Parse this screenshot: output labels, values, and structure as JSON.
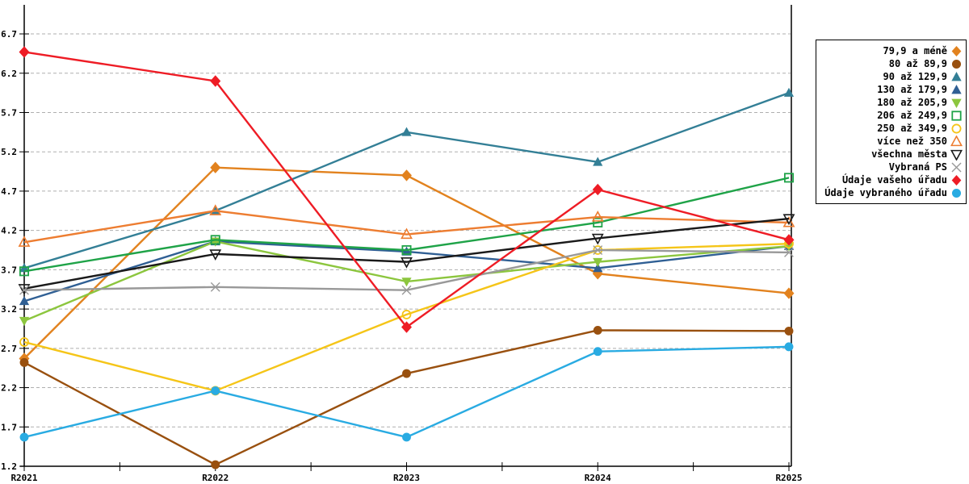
{
  "chart_data": {
    "type": "line",
    "title": "",
    "xlabel": "",
    "ylabel": "",
    "x_categories": [
      "R2021",
      "R2022",
      "R2023",
      "R2024",
      "R2025"
    ],
    "y_ticks": [
      "1.2",
      "1.7",
      "2.2",
      "2.7",
      "3.2",
      "3.7",
      "4.2",
      "4.7",
      "5.2",
      "5.7",
      "6.2",
      "6.7"
    ],
    "ylim": [
      1.2,
      6.93
    ],
    "grid": "horizontal-dashed",
    "gridline_color": "#AFAFAF",
    "axis_color": "#000000",
    "legend_position": "outside-right",
    "series": [
      {
        "name": "79,9 a méně",
        "marker": "diamond-filled",
        "color": "#E2821E",
        "values": [
          2.57,
          5.0,
          4.9,
          3.65,
          3.4
        ]
      },
      {
        "name": "80 až 89,9",
        "marker": "circle-filled",
        "color": "#99500F",
        "values": [
          2.52,
          1.22,
          2.38,
          2.93,
          2.92
        ]
      },
      {
        "name": "90 až 129,9",
        "marker": "triangle-up-filled",
        "color": "#337F96",
        "values": [
          3.72,
          4.45,
          5.45,
          5.07,
          5.95
        ]
      },
      {
        "name": "130 až 179,9",
        "marker": "triangle-up-filled",
        "color": "#2F5F94",
        "values": [
          3.3,
          4.06,
          3.93,
          3.72,
          4.0
        ]
      },
      {
        "name": "180 až 205,9",
        "marker": "triangle-down-filled",
        "color": "#8CC63E",
        "values": [
          3.05,
          4.06,
          3.55,
          3.8,
          4.0
        ]
      },
      {
        "name": "206 až 249,9",
        "marker": "square-open",
        "color": "#1FA348",
        "values": [
          3.68,
          4.08,
          3.95,
          4.3,
          4.87
        ]
      },
      {
        "name": "250 až 349,9",
        "marker": "circle-open",
        "color": "#F5C518",
        "values": [
          2.78,
          2.16,
          3.13,
          3.95,
          4.03
        ]
      },
      {
        "name": "více než 350",
        "marker": "triangle-up-open",
        "color": "#ED7D31",
        "values": [
          4.05,
          4.45,
          4.15,
          4.37,
          4.3
        ]
      },
      {
        "name": "všechna města",
        "marker": "triangle-down-open",
        "color": "#1A1A1A",
        "values": [
          3.46,
          3.9,
          3.8,
          4.1,
          4.35
        ]
      },
      {
        "name": "Vybraná PS",
        "marker": "x",
        "color": "#999999",
        "values": [
          3.44,
          3.48,
          3.44,
          3.95,
          3.92
        ]
      },
      {
        "name": "Údaje vašeho úřadu",
        "marker": "diamond-filled",
        "color": "#EE1C25",
        "values": [
          6.47,
          6.1,
          2.97,
          4.72,
          4.08
        ]
      },
      {
        "name": "Údaje vybraného úřadu",
        "marker": "circle-filled",
        "color": "#29ABE2",
        "values": [
          1.57,
          2.16,
          1.57,
          2.66,
          2.72
        ]
      }
    ]
  }
}
